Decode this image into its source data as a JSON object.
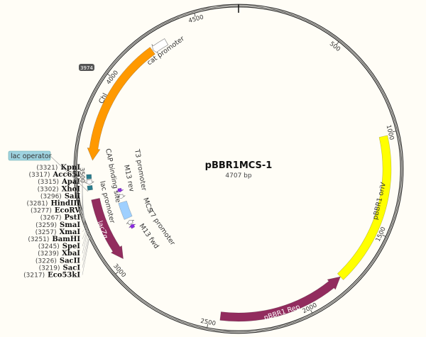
{
  "plasmid": {
    "name": "pBBR1MCS-1",
    "length_label": "4707 bp",
    "length_bp": 4707
  },
  "ticks": [
    "500",
    "1000",
    "1500",
    "2000",
    "2500",
    "3000",
    "3500",
    "4000",
    "4500"
  ],
  "badge": "3974",
  "colors": {
    "background": "#fffdf6",
    "chl": "#ff9900",
    "oriV": "#ffff00",
    "rep": "#922c5e",
    "lacZ": "#922c5e",
    "teal": "#2a7d8e",
    "primer": "#8a2be2",
    "mcs": "#9fd0ff"
  },
  "features": [
    {
      "id": "chl",
      "label": "Chl",
      "start": 3574,
      "end": 4236,
      "dir": -1,
      "kind": "cds",
      "color": "#ff9900"
    },
    {
      "id": "cat-promoter",
      "label": "cat promoter",
      "start": 4240,
      "end": 4320,
      "dir": -1,
      "kind": "promoter",
      "color": "#ffffff"
    },
    {
      "id": "oriV",
      "label": "pBBR1 oriV",
      "start": 1011,
      "end": 1787,
      "dir": 0,
      "kind": "origin",
      "color": "#ffff00"
    },
    {
      "id": "rep",
      "label": "pBBR1 Rep",
      "start": 2445,
      "end": 1787,
      "dir": -1,
      "kind": "cds",
      "color": "#922c5e"
    },
    {
      "id": "lacZ",
      "label": "lacZα",
      "start": 3034,
      "end": 3374,
      "dir": -1,
      "kind": "cds",
      "color": "#922c5e"
    },
    {
      "id": "cap",
      "label": "CAP binding site",
      "start": 3480,
      "end": 3502,
      "dir": 0,
      "kind": "site",
      "color": "#2a7d8e"
    },
    {
      "id": "lacp",
      "label": "lac promoter",
      "start": 3452,
      "end": 3476,
      "dir": -1,
      "kind": "promoter",
      "color": "#ffffff"
    },
    {
      "id": "laco",
      "label": "lac operator",
      "start": 3424,
      "end": 3446,
      "dir": 0,
      "kind": "site",
      "color": "#2a7d8e"
    },
    {
      "id": "m13rev",
      "label": "M13 rev",
      "start": 3385,
      "end": 3408,
      "dir": -1,
      "kind": "primer",
      "color": "#8a2be2"
    },
    {
      "id": "t3",
      "label": "T3 promoter",
      "start": 3345,
      "end": 3368,
      "dir": -1,
      "kind": "promoter",
      "color": "#ffffff"
    },
    {
      "id": "mcs",
      "label": "MCS",
      "start": 3217,
      "end": 3321,
      "dir": 0,
      "kind": "mcs",
      "color": "#9fd0ff"
    },
    {
      "id": "t7",
      "label": "T7 promoter",
      "start": 3176,
      "end": 3200,
      "dir": 1,
      "kind": "promoter",
      "color": "#ffffff"
    },
    {
      "id": "m13fwd",
      "label": "M13 fwd",
      "start": 3148,
      "end": 3172,
      "dir": 1,
      "kind": "primer",
      "color": "#8a2be2"
    }
  ],
  "enzymes": [
    {
      "pos": "(3321)",
      "name": "KpnI",
      "bp": 3321
    },
    {
      "pos": "(3317)",
      "name": "Acc65I",
      "bp": 3317
    },
    {
      "pos": "(3315)",
      "name": "ApaI",
      "bp": 3315
    },
    {
      "pos": "(3302)",
      "name": "XhoI",
      "bp": 3302
    },
    {
      "pos": "(3296)",
      "name": "SalI",
      "bp": 3296
    },
    {
      "pos": "(3281)",
      "name": "HindIII",
      "bp": 3281
    },
    {
      "pos": "(3277)",
      "name": "EcoRV",
      "bp": 3277
    },
    {
      "pos": "(3267)",
      "name": "PstI",
      "bp": 3267
    },
    {
      "pos": "(3259)",
      "name": "SmaI",
      "bp": 3259
    },
    {
      "pos": "(3257)",
      "name": "XmaI",
      "bp": 3257
    },
    {
      "pos": "(3251)",
      "name": "BamHI",
      "bp": 3251
    },
    {
      "pos": "(3245)",
      "name": "SpeI",
      "bp": 3245
    },
    {
      "pos": "(3239)",
      "name": "XbaI",
      "bp": 3239
    },
    {
      "pos": "(3226)",
      "name": "SacII",
      "bp": 3226
    },
    {
      "pos": "(3219)",
      "name": "SacI",
      "bp": 3219
    },
    {
      "pos": "(3217)",
      "name": "Eco53kI",
      "bp": 3217
    }
  ]
}
